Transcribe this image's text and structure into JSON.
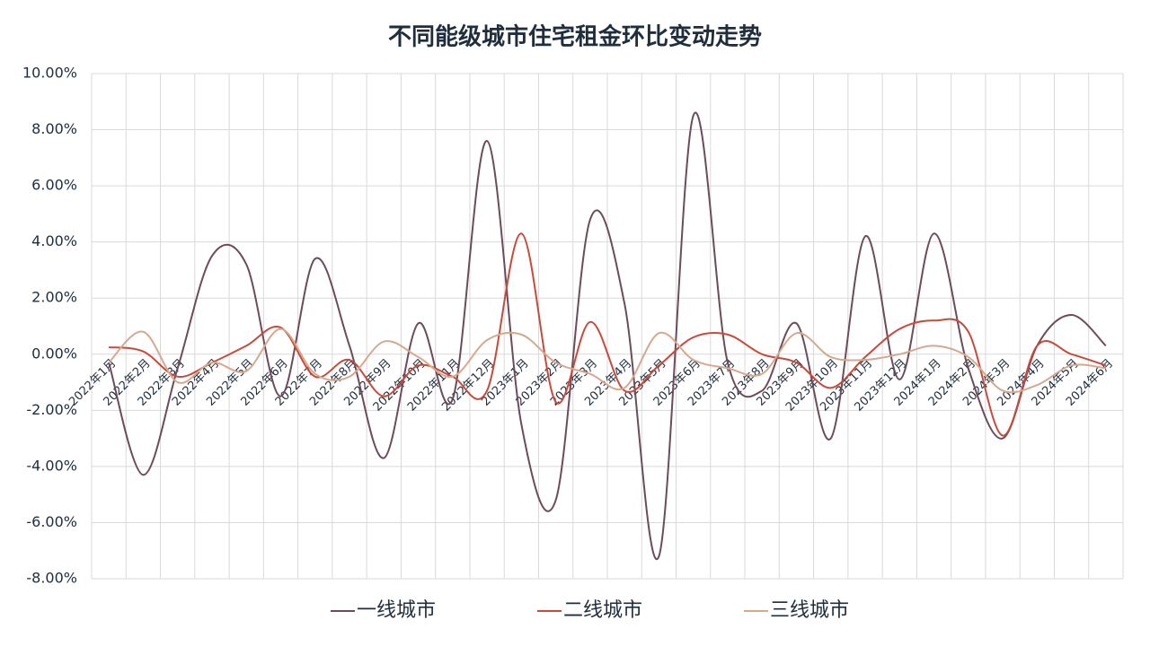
{
  "chart_data": {
    "type": "line",
    "title": "不同能级城市住宅租金环比变动走势",
    "categories": [
      "2022年1月",
      "2022年2月",
      "2022年3月",
      "2022年4月",
      "2022年5月",
      "2022年6月",
      "2022年7月",
      "2022年8月",
      "2022年9月",
      "2022年10月",
      "2022年11月",
      "2022年12月",
      "2023年1月",
      "2023年2月",
      "2023年3月",
      "2023年4月",
      "2023年5月",
      "2023年6月",
      "2023年7月",
      "2023年8月",
      "2023年9月",
      "2023年10月",
      "2023年11月",
      "2023年12月",
      "2024年1月",
      "2024年2月",
      "2024年3月",
      "2024年4月",
      "2024年5月",
      "2024年6月"
    ],
    "series": [
      {
        "name": "一线城市",
        "color": "#6e4b5c",
        "values": [
          -0.3,
          -4.3,
          -0.5,
          3.5,
          3.2,
          -1.5,
          3.4,
          0.3,
          -3.7,
          1.1,
          -1.6,
          7.6,
          -2.5,
          -5.2,
          4.8,
          1.8,
          -7.2,
          8.5,
          -0.3,
          -1.3,
          1.1,
          -3.0,
          4.2,
          -0.9,
          4.3,
          -0.5,
          -3.0,
          0.3,
          1.4,
          0.3
        ]
      },
      {
        "name": "二线城市",
        "color": "#c9493a",
        "values": [
          0.25,
          0.1,
          -0.8,
          -0.3,
          0.3,
          0.95,
          -0.8,
          -0.2,
          -1.5,
          -0.4,
          -0.8,
          -1.3,
          4.3,
          -1.7,
          1.15,
          -1.3,
          -0.4,
          0.6,
          0.7,
          0.0,
          -0.3,
          -1.2,
          -0.1,
          0.9,
          1.2,
          0.8,
          -2.9,
          0.3,
          0.0,
          -0.4
        ]
      },
      {
        "name": "三线城市",
        "color": "#d6a98e",
        "values": [
          -0.3,
          0.8,
          -1.0,
          -0.3,
          -0.6,
          0.9,
          -0.7,
          -0.8,
          0.45,
          -0.1,
          -0.8,
          0.5,
          0.7,
          -0.3,
          -0.7,
          -1.2,
          0.75,
          -0.2,
          -0.5,
          -0.7,
          0.75,
          -0.1,
          -0.2,
          0.0,
          0.3,
          -0.1,
          -1.3,
          -1.1,
          -0.4,
          -0.5
        ]
      }
    ],
    "ylim": [
      -8,
      10
    ],
    "yticks": [
      {
        "value": -8,
        "label": "-8.00%"
      },
      {
        "value": -6,
        "label": "-6.00%"
      },
      {
        "value": -4,
        "label": "-4.00%"
      },
      {
        "value": -2,
        "label": "-2.00%"
      },
      {
        "value": 0,
        "label": "0.00%"
      },
      {
        "value": 2,
        "label": "2.00%"
      },
      {
        "value": 4,
        "label": "4.00%"
      },
      {
        "value": 6,
        "label": "6.00%"
      },
      {
        "value": 8,
        "label": "8.00%"
      },
      {
        "value": 10,
        "label": "10.00%"
      }
    ],
    "grid": true,
    "smooth": true,
    "legend": "bottom"
  }
}
